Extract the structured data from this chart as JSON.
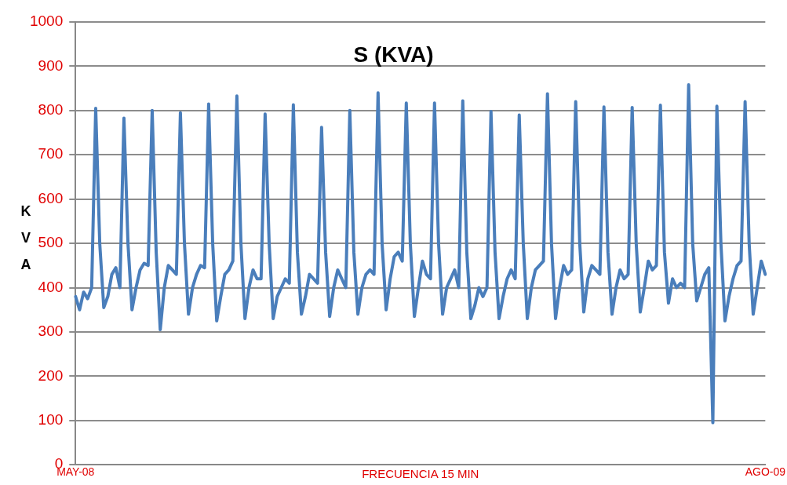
{
  "chart_data": {
    "type": "line",
    "title": "S (KVA)",
    "ylabel": "KVA",
    "xlabel": "FRECUENCIA 15 MIN",
    "categories": [
      "MAY-08",
      null,
      null,
      null,
      null,
      null,
      null,
      null,
      null,
      null,
      null,
      null,
      null,
      null,
      null,
      null,
      null,
      null,
      null,
      null,
      null,
      null,
      null,
      null,
      null,
      null,
      null,
      null,
      null,
      null,
      null,
      null,
      null,
      null,
      null,
      null,
      null,
      null,
      null,
      null,
      null,
      null,
      null,
      null,
      null,
      null,
      null,
      null,
      null,
      null,
      null,
      null,
      null,
      null,
      null,
      null,
      null,
      null,
      null,
      null,
      null,
      null,
      null,
      null,
      null,
      null,
      null,
      null,
      null,
      null,
      null,
      null,
      null,
      null,
      null,
      null,
      null,
      null,
      null,
      null,
      null,
      null,
      null,
      null,
      null,
      null,
      null,
      null,
      null,
      null,
      null,
      null,
      null,
      null,
      null,
      null,
      null,
      null,
      null,
      null,
      null,
      null,
      null,
      null,
      null,
      null,
      null,
      null,
      null,
      null,
      null,
      null,
      null,
      null,
      null,
      null,
      null,
      null,
      null,
      null,
      null,
      null,
      null,
      null,
      null,
      null,
      null,
      null,
      null,
      null,
      null,
      null,
      null,
      null,
      null,
      null,
      null,
      null,
      null,
      null,
      null,
      null,
      null,
      null,
      null,
      null,
      null,
      null,
      null,
      null,
      null,
      null,
      null,
      null,
      null,
      null,
      null,
      null,
      null,
      null,
      null,
      null,
      null,
      null,
      null,
      null,
      null,
      null,
      null,
      null,
      null,
      "AGO-09"
    ],
    "series": [
      {
        "color": "#4a7ebb",
        "values": [
          380,
          350,
          390,
          375,
          400,
          805,
          500,
          355,
          380,
          430,
          445,
          400,
          783,
          500,
          350,
          400,
          440,
          455,
          450,
          800,
          480,
          305,
          400,
          450,
          440,
          430,
          795,
          500,
          340,
          400,
          430,
          450,
          445,
          815,
          500,
          325,
          380,
          430,
          440,
          460,
          833,
          500,
          330,
          400,
          440,
          420,
          420,
          792,
          500,
          330,
          380,
          400,
          420,
          410,
          813,
          480,
          340,
          380,
          430,
          420,
          410,
          762,
          480,
          335,
          400,
          440,
          420,
          400,
          800,
          480,
          340,
          400,
          430,
          440,
          430,
          840,
          500,
          350,
          420,
          470,
          480,
          460,
          817,
          500,
          335,
          400,
          460,
          430,
          420,
          817,
          500,
          340,
          400,
          420,
          440,
          400,
          822,
          480,
          330,
          360,
          400,
          380,
          400,
          798,
          480,
          330,
          380,
          420,
          440,
          420,
          790,
          500,
          330,
          400,
          440,
          450,
          460,
          838,
          500,
          330,
          400,
          450,
          430,
          440,
          820,
          500,
          345,
          420,
          450,
          440,
          430,
          808,
          480,
          340,
          400,
          440,
          420,
          430,
          807,
          500,
          345,
          400,
          460,
          440,
          450,
          812,
          480,
          365,
          420,
          400,
          410,
          400,
          858,
          500,
          370,
          400,
          430,
          445,
          95,
          810,
          500,
          325,
          380,
          420,
          450,
          460,
          820,
          500,
          340,
          400,
          460,
          430
        ]
      }
    ],
    "ylim": [
      0,
      1000
    ],
    "yticks": [
      0,
      100,
      200,
      300,
      400,
      500,
      600,
      700,
      800,
      900,
      1000
    ],
    "grid": "y",
    "legend": false,
    "marker": "none",
    "line_style": "solid"
  }
}
